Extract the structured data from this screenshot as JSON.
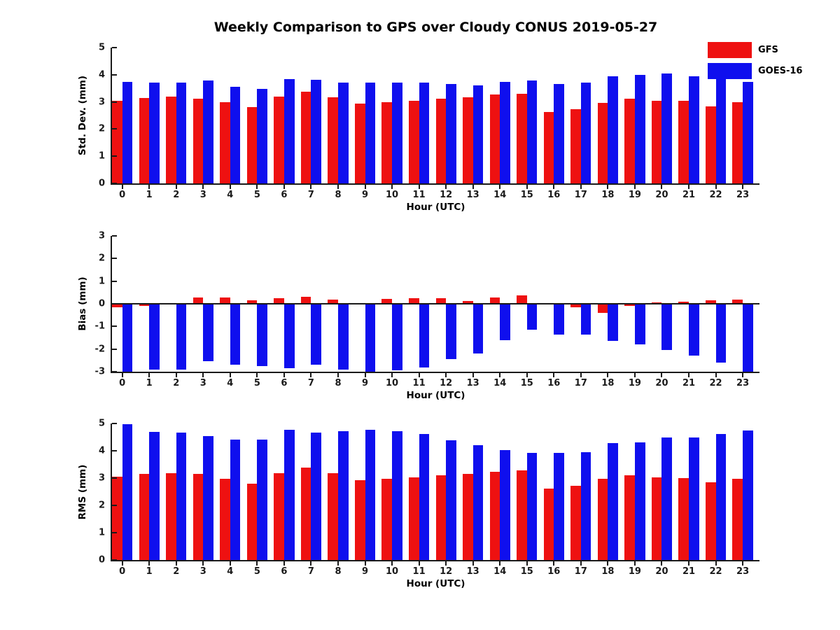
{
  "title": "Weekly Comparison to GPS over Cloudy CONUS 2019-05-27",
  "legend": {
    "items": [
      {
        "label": "GFS",
        "color": "#ee1111"
      },
      {
        "label": "GOES-16",
        "color": "#0f0fee"
      }
    ]
  },
  "chart_data": [
    {
      "type": "bar",
      "ylabel": "Std. Dev. (mm)",
      "xlabel": "Hour (UTC)",
      "ylim": [
        0,
        5
      ],
      "yticks": [
        0,
        1,
        2,
        3,
        4,
        5
      ],
      "grid": false,
      "legend_position": "top-right-outside",
      "categories": [
        "0",
        "1",
        "2",
        "3",
        "4",
        "5",
        "6",
        "7",
        "8",
        "9",
        "10",
        "11",
        "12",
        "13",
        "14",
        "15",
        "16",
        "17",
        "18",
        "19",
        "20",
        "21",
        "22",
        "23"
      ],
      "series": [
        {
          "name": "GFS",
          "color": "#ee1111",
          "values": [
            3.05,
            3.15,
            3.2,
            3.13,
            3.0,
            2.8,
            3.2,
            3.38,
            3.18,
            2.93,
            3.0,
            3.05,
            3.12,
            3.18,
            3.27,
            3.3,
            2.62,
            2.73,
            2.97,
            3.12,
            3.05,
            3.03,
            2.83,
            3.0
          ]
        },
        {
          "name": "GOES-16",
          "color": "#0f0fee",
          "values": [
            3.75,
            3.7,
            3.72,
            3.78,
            3.55,
            3.47,
            3.85,
            3.82,
            3.72,
            3.7,
            3.72,
            3.72,
            3.65,
            3.62,
            3.73,
            3.78,
            3.67,
            3.7,
            3.95,
            4.0,
            4.05,
            3.95,
            3.97,
            3.75
          ]
        }
      ]
    },
    {
      "type": "bar",
      "ylabel": "Bias (mm)",
      "xlabel": "Hour (UTC)",
      "ylim": [
        -3,
        3
      ],
      "yticks": [
        3,
        2,
        1,
        0,
        -1,
        -2,
        -3
      ],
      "grid": false,
      "categories": [
        "0",
        "1",
        "2",
        "3",
        "4",
        "5",
        "6",
        "7",
        "8",
        "9",
        "10",
        "11",
        "12",
        "13",
        "14",
        "15",
        "16",
        "17",
        "18",
        "19",
        "20",
        "21",
        "22",
        "23"
      ],
      "series": [
        {
          "name": "GFS",
          "color": "#ee1111",
          "values": [
            -0.15,
            -0.1,
            0.0,
            0.28,
            0.28,
            0.15,
            0.25,
            0.32,
            0.2,
            0.0,
            0.22,
            0.25,
            0.25,
            0.12,
            0.27,
            0.38,
            0.0,
            -0.15,
            -0.4,
            -0.1,
            0.05,
            0.08,
            0.15,
            0.2
          ]
        },
        {
          "name": "GOES-16",
          "color": "#0f0fee",
          "values": [
            -3.0,
            -2.9,
            -2.9,
            -2.55,
            -2.7,
            -2.75,
            -2.85,
            -2.7,
            -2.9,
            -3.0,
            -2.93,
            -2.8,
            -2.45,
            -2.2,
            -1.6,
            -1.15,
            -1.35,
            -1.35,
            -1.65,
            -1.8,
            -2.05,
            -2.3,
            -2.6,
            -3.0
          ]
        }
      ]
    },
    {
      "type": "bar",
      "ylabel": "RMS (mm)",
      "xlabel": "Hour (UTC)",
      "ylim": [
        0,
        5
      ],
      "yticks": [
        0,
        1,
        2,
        3,
        4,
        5
      ],
      "grid": false,
      "categories": [
        "0",
        "1",
        "2",
        "3",
        "4",
        "5",
        "6",
        "7",
        "8",
        "9",
        "10",
        "11",
        "12",
        "13",
        "14",
        "15",
        "16",
        "17",
        "18",
        "19",
        "20",
        "21",
        "22",
        "23"
      ],
      "series": [
        {
          "name": "GFS",
          "color": "#ee1111",
          "values": [
            3.05,
            3.15,
            3.18,
            3.15,
            2.97,
            2.8,
            3.18,
            3.38,
            3.18,
            2.93,
            2.97,
            3.02,
            3.1,
            3.15,
            3.22,
            3.27,
            2.62,
            2.72,
            2.97,
            3.1,
            3.03,
            3.0,
            2.85,
            2.98
          ]
        },
        {
          "name": "GOES-16",
          "color": "#0f0fee",
          "values": [
            4.98,
            4.7,
            4.67,
            4.55,
            4.42,
            4.42,
            4.77,
            4.67,
            4.72,
            4.78,
            4.72,
            4.62,
            4.38,
            4.2,
            4.02,
            3.92,
            3.92,
            3.95,
            4.28,
            4.32,
            4.5,
            4.5,
            4.62,
            4.75
          ]
        }
      ]
    }
  ]
}
